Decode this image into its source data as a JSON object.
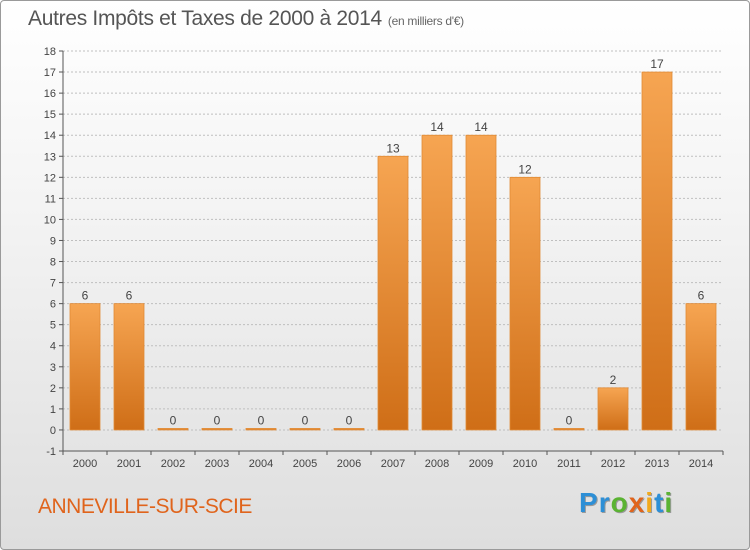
{
  "page": {
    "title": "Autres Impôts et Taxes de 2000 à 2014",
    "subtitle": "(en milliers d'€)",
    "commune": "ANNEVILLE-SUR-SCIE",
    "brand": [
      "P",
      "r",
      "o",
      "x",
      "i",
      "t",
      "i"
    ],
    "brand_colors": [
      "#2d8fd6",
      "#2d8fd6",
      "#5ab332",
      "#e0641c",
      "#f2a91c",
      "#2d8fd6",
      "#5ab332"
    ]
  },
  "colors": {
    "bar_top": "#f6a552",
    "bar_bottom": "#cf6e17",
    "grid": "#bfbfbf",
    "axis": "#555555"
  },
  "chart_data": {
    "type": "bar",
    "title": "Autres Impôts et Taxes de 2000 à 2014",
    "categories": [
      "2000",
      "2001",
      "2002",
      "2003",
      "2004",
      "2005",
      "2006",
      "2007",
      "2008",
      "2009",
      "2010",
      "2011",
      "2012",
      "2013",
      "2014"
    ],
    "values": [
      6,
      6,
      0,
      0,
      0,
      0,
      0,
      13,
      14,
      14,
      12,
      0,
      2,
      17,
      6
    ],
    "ylim": [
      -1,
      18
    ],
    "yticks": [
      -1,
      0,
      1,
      2,
      3,
      4,
      5,
      6,
      7,
      8,
      9,
      10,
      11,
      12,
      13,
      14,
      15,
      16,
      17,
      18
    ],
    "grid": true,
    "legend": "none"
  }
}
